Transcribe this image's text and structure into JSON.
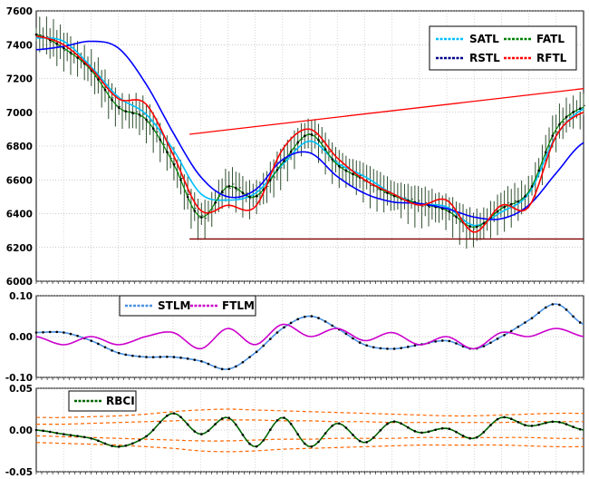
{
  "chart_data": [
    {
      "type": "line",
      "panel": "price",
      "ylim": [
        6000,
        7600
      ],
      "yticks": [
        6000,
        6200,
        6400,
        6600,
        6800,
        7000,
        7200,
        7400,
        7600
      ],
      "ytick_labels": [
        "6000",
        "6200",
        "6400",
        "6600",
        "6800",
        "7000",
        "7200",
        "7400",
        "7600"
      ],
      "x": [
        0,
        10,
        20,
        30,
        40,
        50,
        60,
        70,
        80,
        90,
        100,
        110,
        120,
        130,
        140,
        150,
        160,
        170,
        180,
        190,
        200
      ],
      "price": [
        7460,
        7380,
        7250,
        7030,
        6960,
        6700,
        6380,
        6560,
        6500,
        6700,
        6870,
        6690,
        6600,
        6510,
        6460,
        6420,
        6320,
        6430,
        6530,
        6900,
        7030
      ],
      "legend": {
        "placement": "top-right",
        "entries": [
          "SATL",
          "FATL",
          "RSTL",
          "RFTL"
        ]
      },
      "series": [
        {
          "name": "SATL",
          "color": "#00bfff",
          "values": [
            7440,
            7420,
            7270,
            7090,
            6990,
            6780,
            6520,
            6480,
            6520,
            6690,
            6830,
            6700,
            6620,
            6520,
            6460,
            6440,
            6330,
            6410,
            6520,
            6860,
            7020
          ]
        },
        {
          "name": "FATL",
          "color": "#008000",
          "values": [
            7460,
            7380,
            7250,
            7030,
            6960,
            6700,
            6380,
            6560,
            6500,
            6700,
            6870,
            6690,
            6600,
            6510,
            6460,
            6420,
            6320,
            6430,
            6530,
            6900,
            7030
          ]
        },
        {
          "name": "RSTL",
          "color": "#0000ff",
          "values": [
            7370,
            7390,
            7420,
            7380,
            7170,
            6880,
            6620,
            6500,
            6540,
            6720,
            6760,
            6620,
            6520,
            6470,
            6460,
            6430,
            6380,
            6370,
            6450,
            6640,
            6820
          ]
        },
        {
          "name": "RFTL",
          "color": "#ff0000",
          "values": [
            7450,
            7400,
            7260,
            7080,
            7050,
            6750,
            6420,
            6450,
            6440,
            6780,
            6900,
            6730,
            6600,
            6520,
            6450,
            6480,
            6290,
            6450,
            6440,
            6860,
            7000
          ]
        }
      ],
      "trendlines": [
        {
          "color": "#ff0000",
          "x": [
            56,
            200
          ],
          "y": [
            6870,
            7140
          ]
        },
        {
          "color": "#800000",
          "x": [
            56,
            200
          ],
          "y": [
            6250,
            6250
          ]
        }
      ]
    },
    {
      "type": "line",
      "panel": "stlm_ftlm",
      "ylim": [
        -0.1,
        0.1
      ],
      "yticks": [
        -0.1,
        0,
        0.1
      ],
      "ytick_labels": [
        "-0.10",
        "0.00",
        "0.10"
      ],
      "x": [
        0,
        10,
        20,
        30,
        40,
        50,
        60,
        70,
        80,
        90,
        100,
        110,
        120,
        130,
        140,
        150,
        160,
        170,
        180,
        190,
        200
      ],
      "legend": {
        "placement": "top-center",
        "entries": [
          "STLM",
          "FTLM"
        ]
      },
      "series": [
        {
          "name": "STLM",
          "color": "#4a90e2",
          "values": [
            0.01,
            0.01,
            -0.01,
            -0.04,
            -0.05,
            -0.05,
            -0.06,
            -0.08,
            -0.04,
            0.02,
            0.05,
            0.02,
            -0.02,
            -0.03,
            -0.02,
            -0.01,
            -0.03,
            0.0,
            0.04,
            0.08,
            0.03
          ]
        },
        {
          "name": "FTLM",
          "color": "#cc00cc",
          "values": [
            0.0,
            -0.02,
            0.0,
            -0.02,
            0.0,
            0.01,
            -0.03,
            0.02,
            -0.02,
            0.03,
            0.0,
            0.02,
            -0.01,
            0.01,
            -0.02,
            0.0,
            -0.03,
            0.01,
            0.0,
            0.02,
            0.0
          ]
        }
      ]
    },
    {
      "type": "line",
      "panel": "rbci",
      "ylim": [
        -0.05,
        0.05
      ],
      "yticks": [
        -0.05,
        0,
        0.05
      ],
      "ytick_labels": [
        "-0.05",
        "0.00",
        "0.05"
      ],
      "x": [
        0,
        10,
        20,
        30,
        40,
        50,
        60,
        70,
        80,
        90,
        100,
        110,
        120,
        130,
        140,
        150,
        160,
        170,
        180,
        190,
        200
      ],
      "legend": {
        "placement": "top-left",
        "entries": [
          "RBCI"
        ]
      },
      "series": [
        {
          "name": "RBCI",
          "color": "#006400",
          "values": [
            0.0,
            -0.005,
            -0.01,
            -0.02,
            -0.008,
            0.02,
            -0.005,
            0.015,
            -0.02,
            0.015,
            -0.02,
            0.008,
            -0.015,
            0.01,
            -0.003,
            0.002,
            -0.01,
            0.015,
            0.005,
            0.01,
            0.0
          ]
        }
      ],
      "bands": {
        "color": "#ff6600",
        "values": [
          [
            0.015,
            0.015,
            0.016,
            0.017,
            0.019,
            0.022,
            0.024,
            0.025,
            0.024,
            0.023,
            0.022,
            0.021,
            0.02,
            0.019,
            0.018,
            0.017,
            0.017,
            0.018,
            0.019,
            0.02,
            0.02
          ],
          [
            0.007,
            0.007,
            0.008,
            0.009,
            0.01,
            0.011,
            0.012,
            0.012,
            0.012,
            0.011,
            0.011,
            0.01,
            0.01,
            0.009,
            0.009,
            0.009,
            0.009,
            0.009,
            0.01,
            0.01,
            0.01
          ],
          [
            -0.007,
            -0.008,
            -0.009,
            -0.01,
            -0.011,
            -0.012,
            -0.013,
            -0.013,
            -0.012,
            -0.011,
            -0.011,
            -0.01,
            -0.01,
            -0.01,
            -0.009,
            -0.009,
            -0.009,
            -0.009,
            -0.009,
            -0.01,
            -0.01
          ],
          [
            -0.015,
            -0.016,
            -0.017,
            -0.018,
            -0.02,
            -0.022,
            -0.025,
            -0.026,
            -0.025,
            -0.023,
            -0.022,
            -0.021,
            -0.02,
            -0.019,
            -0.018,
            -0.018,
            -0.018,
            -0.018,
            -0.019,
            -0.02,
            -0.02
          ]
        ]
      }
    }
  ]
}
